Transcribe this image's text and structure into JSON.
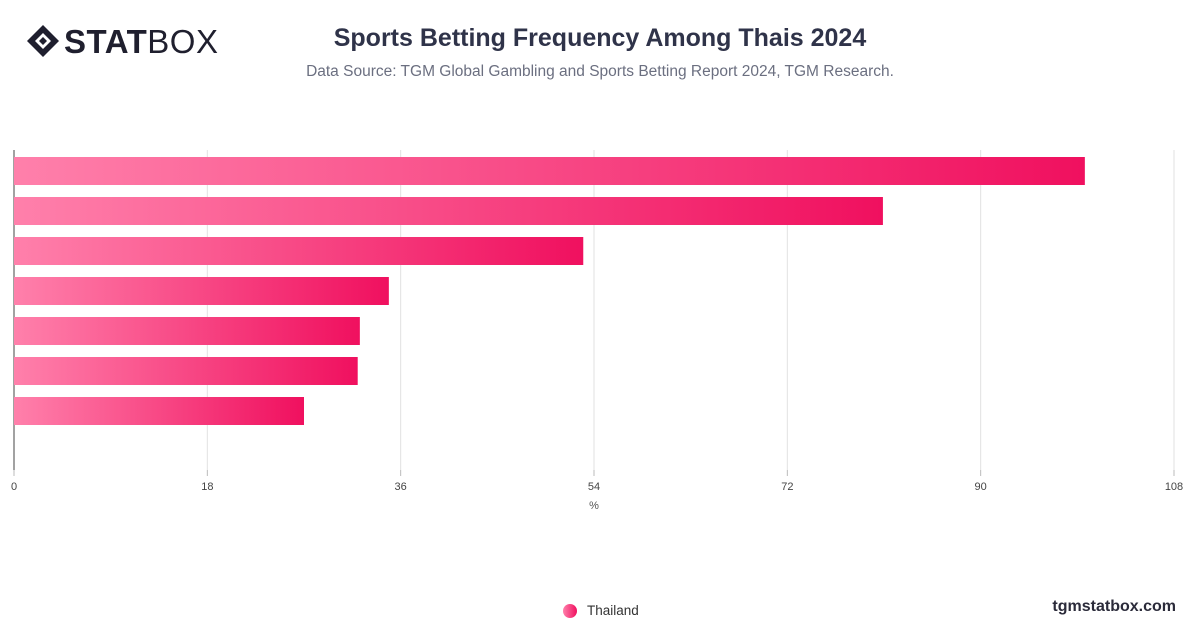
{
  "header": {
    "logo_bold": "STAT",
    "logo_light": "BOX",
    "title": "Sports Betting Frequency Among Thais 2024",
    "subtitle": "Data Source: TGM Global Gambling and Sports Betting Report 2024, TGM Research."
  },
  "footer": {
    "site": "tgmstatbox.com"
  },
  "legend": {
    "label": "Thailand"
  },
  "colors": {
    "bar_start": "#ff80ab",
    "bar_end": "#f0105f",
    "grid": "#e2e2e2",
    "axis": "#444444"
  },
  "chart_data": {
    "type": "bar",
    "orientation": "horizontal",
    "categories": [
      "",
      "",
      "",
      "",
      "",
      "",
      ""
    ],
    "series": [
      {
        "name": "Thailand",
        "values": [
          99.7,
          80.9,
          53.0,
          34.9,
          32.2,
          32.0,
          27.0
        ]
      }
    ],
    "xlabel": "%",
    "xlim": [
      0,
      108
    ],
    "xticks": [
      0,
      18,
      36,
      54,
      72,
      90,
      108
    ],
    "grid": true,
    "legend_position": "bottom"
  }
}
